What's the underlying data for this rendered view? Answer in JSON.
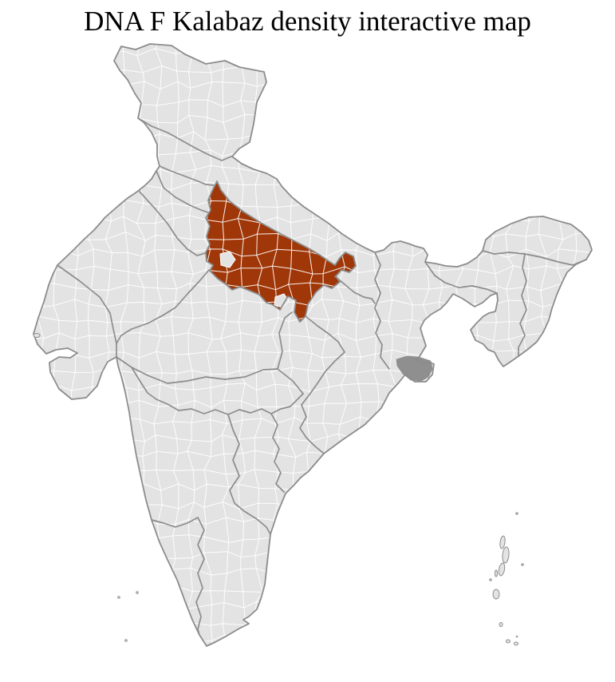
{
  "title": "DNA F Kalabaz density interactive map",
  "map": {
    "colors": {
      "background": "#ffffff",
      "land_fill": "#e3e3e3",
      "district_border": "#ffffff",
      "state_border": "#8c8c8c",
      "highlight_fill": "#a03708",
      "delta_patch": "#8f8f8f"
    }
  }
}
